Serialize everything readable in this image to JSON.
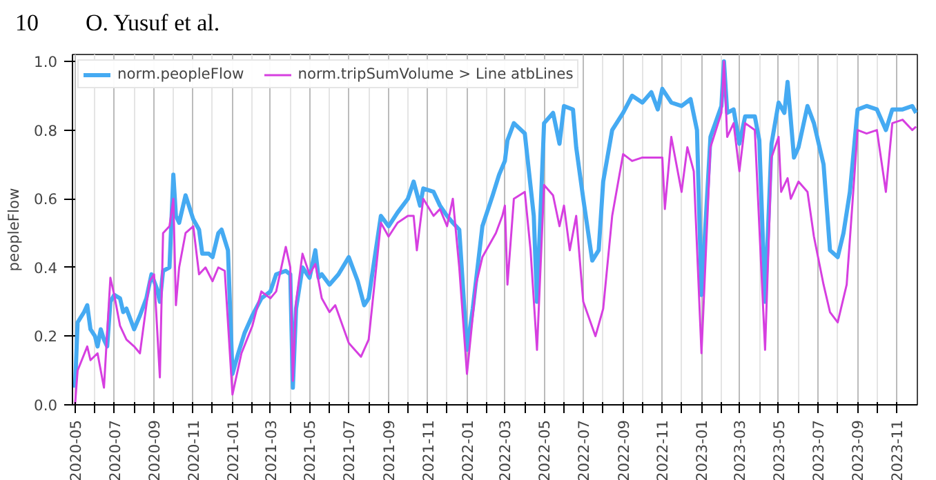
{
  "chart_data": {
    "type": "line",
    "ylabel": "peopleFlow",
    "annotations": [
      "10",
      "O. Yusuf et al."
    ],
    "xlim": [
      "2020-04-27",
      "2023-12-03"
    ],
    "ylim": [
      0,
      1.02
    ],
    "yticks": [
      {
        "value": 0,
        "label": "0.0"
      },
      {
        "value": 0.2,
        "label": "0.2"
      },
      {
        "value": 0.4,
        "label": "0.4"
      },
      {
        "value": 0.6,
        "label": "0.6"
      },
      {
        "value": 0.8,
        "label": "0.8"
      },
      {
        "value": 1,
        "label": "1.0"
      }
    ],
    "xticks": [
      {
        "value": "2020-05",
        "label": "2020-05"
      },
      {
        "value": "2020-06",
        "label": null
      },
      {
        "value": "2020-07",
        "label": "2020-07"
      },
      {
        "value": "2020-08",
        "label": null
      },
      {
        "value": "2020-09",
        "label": "2020-09"
      },
      {
        "value": "2020-10",
        "label": null
      },
      {
        "value": "2020-11",
        "label": "2020-11"
      },
      {
        "value": "2020-12",
        "label": null
      },
      {
        "value": "2021-01",
        "label": "2021-01"
      },
      {
        "value": "2021-02",
        "label": null
      },
      {
        "value": "2021-03",
        "label": "2021-03"
      },
      {
        "value": "2021-04",
        "label": null
      },
      {
        "value": "2021-05",
        "label": "2021-05"
      },
      {
        "value": "2021-06",
        "label": null
      },
      {
        "value": "2021-07",
        "label": "2021-07"
      },
      {
        "value": "2021-08",
        "label": null
      },
      {
        "value": "2021-09",
        "label": "2021-09"
      },
      {
        "value": "2021-10",
        "label": null
      },
      {
        "value": "2021-11",
        "label": "2021-11"
      },
      {
        "value": "2021-12",
        "label": null
      },
      {
        "value": "2022-01",
        "label": "2022-01"
      },
      {
        "value": "2022-02",
        "label": null
      },
      {
        "value": "2022-03",
        "label": "2022-03"
      },
      {
        "value": "2022-04",
        "label": null
      },
      {
        "value": "2022-05",
        "label": "2022-05"
      },
      {
        "value": "2022-06",
        "label": null
      },
      {
        "value": "2022-07",
        "label": "2022-07"
      },
      {
        "value": "2022-08",
        "label": null
      },
      {
        "value": "2022-09",
        "label": "2022-09"
      },
      {
        "value": "2022-10",
        "label": null
      },
      {
        "value": "2022-11",
        "label": "2022-11"
      },
      {
        "value": "2022-12",
        "label": null
      },
      {
        "value": "2023-01",
        "label": "2023-01"
      },
      {
        "value": "2023-02",
        "label": null
      },
      {
        "value": "2023-03",
        "label": "2023-03"
      },
      {
        "value": "2023-04",
        "label": null
      },
      {
        "value": "2023-05",
        "label": "2023-05"
      },
      {
        "value": "2023-06",
        "label": null
      },
      {
        "value": "2023-07",
        "label": "2023-07"
      },
      {
        "value": "2023-08",
        "label": null
      },
      {
        "value": "2023-09",
        "label": "2023-09"
      },
      {
        "value": "2023-10",
        "label": null
      },
      {
        "value": "2023-11",
        "label": "2023-11"
      }
    ],
    "grid": "x",
    "legend": "top left",
    "series": [
      {
        "name": "norm.peopleFlow",
        "color": "#45aaf2",
        "x": [
          "2020-05-01",
          "2020-05-05",
          "2020-05-15",
          "2020-05-20",
          "2020-05-25",
          "2020-06-01",
          "2020-06-05",
          "2020-06-10",
          "2020-06-15",
          "2020-06-20",
          "2020-06-25",
          "2020-07-01",
          "2020-07-10",
          "2020-07-15",
          "2020-07-20",
          "2020-08-01",
          "2020-08-10",
          "2020-08-20",
          "2020-08-28",
          "2020-09-05",
          "2020-09-10",
          "2020-09-15",
          "2020-09-25",
          "2020-10-01",
          "2020-10-05",
          "2020-10-10",
          "2020-10-20",
          "2020-11-01",
          "2020-11-10",
          "2020-11-15",
          "2020-11-25",
          "2020-12-01",
          "2020-12-10",
          "2020-12-15",
          "2020-12-25",
          "2021-01-01",
          "2021-01-10",
          "2021-01-20",
          "2021-02-01",
          "2021-02-15",
          "2021-03-01",
          "2021-03-10",
          "2021-03-25",
          "2021-04-01",
          "2021-04-05",
          "2021-04-10",
          "2021-04-20",
          "2021-05-01",
          "2021-05-10",
          "2021-05-15",
          "2021-05-20",
          "2021-06-01",
          "2021-06-15",
          "2021-07-01",
          "2021-07-15",
          "2021-07-25",
          "2021-08-01",
          "2021-08-20",
          "2021-09-01",
          "2021-09-15",
          "2021-10-01",
          "2021-10-10",
          "2021-10-20",
          "2021-10-25",
          "2021-11-10",
          "2021-11-20",
          "2021-12-01",
          "2021-12-10",
          "2021-12-20",
          "2022-01-01",
          "2022-01-10",
          "2022-01-25",
          "2022-02-10",
          "2022-02-20",
          "2022-03-01",
          "2022-03-05",
          "2022-03-15",
          "2022-04-01",
          "2022-04-15",
          "2022-04-20",
          "2022-05-01",
          "2022-05-15",
          "2022-05-25",
          "2022-06-01",
          "2022-06-15",
          "2022-06-20",
          "2022-07-01",
          "2022-07-15",
          "2022-07-25",
          "2022-08-01",
          "2022-08-15",
          "2022-09-01",
          "2022-09-15",
          "2022-10-01",
          "2022-10-15",
          "2022-10-25",
          "2022-11-01",
          "2022-11-15",
          "2022-12-01",
          "2022-12-15",
          "2022-12-25",
          "2023-01-01",
          "2023-01-15",
          "2023-02-01",
          "2023-02-05",
          "2023-02-10",
          "2023-02-20",
          "2023-03-01",
          "2023-03-10",
          "2023-03-25",
          "2023-04-01",
          "2023-04-10",
          "2023-04-20",
          "2023-05-01",
          "2023-05-10",
          "2023-05-15",
          "2023-05-25",
          "2023-06-01",
          "2023-06-15",
          "2023-06-25",
          "2023-07-10",
          "2023-07-20",
          "2023-08-01",
          "2023-08-10",
          "2023-08-20",
          "2023-09-01",
          "2023-09-15",
          "2023-10-01",
          "2023-10-15",
          "2023-10-25",
          "2023-11-10",
          "2023-11-25",
          "2023-12-01"
        ],
        "values": [
          0.05,
          0.24,
          0.27,
          0.29,
          0.22,
          0.2,
          0.17,
          0.22,
          0.19,
          0.17,
          0.3,
          0.32,
          0.31,
          0.27,
          0.28,
          0.22,
          0.26,
          0.31,
          0.38,
          0.34,
          0.3,
          0.39,
          0.4,
          0.67,
          0.55,
          0.53,
          0.61,
          0.54,
          0.51,
          0.44,
          0.44,
          0.43,
          0.5,
          0.51,
          0.45,
          0.09,
          0.15,
          0.21,
          0.26,
          0.31,
          0.33,
          0.38,
          0.39,
          0.38,
          0.05,
          0.28,
          0.4,
          0.37,
          0.45,
          0.37,
          0.38,
          0.35,
          0.38,
          0.43,
          0.36,
          0.29,
          0.31,
          0.55,
          0.52,
          0.56,
          0.6,
          0.65,
          0.58,
          0.63,
          0.62,
          0.58,
          0.55,
          0.53,
          0.51,
          0.16,
          0.28,
          0.52,
          0.61,
          0.67,
          0.71,
          0.77,
          0.82,
          0.79,
          0.55,
          0.3,
          0.82,
          0.85,
          0.76,
          0.87,
          0.86,
          0.75,
          0.6,
          0.42,
          0.45,
          0.65,
          0.8,
          0.85,
          0.9,
          0.88,
          0.91,
          0.86,
          0.92,
          0.88,
          0.87,
          0.89,
          0.8,
          0.32,
          0.78,
          0.87,
          1.0,
          0.85,
          0.86,
          0.76,
          0.84,
          0.84,
          0.77,
          0.3,
          0.76,
          0.88,
          0.85,
          0.94,
          0.72,
          0.75,
          0.87,
          0.82,
          0.7,
          0.45,
          0.43,
          0.5,
          0.62,
          0.86,
          0.87,
          0.86,
          0.8,
          0.86,
          0.86,
          0.87,
          0.85
        ]
      },
      {
        "name": "norm.tripSumVolume > Line atbLines",
        "color": "#d63fe0",
        "x": [
          "2020-05-01",
          "2020-05-05",
          "2020-05-20",
          "2020-05-25",
          "2020-06-05",
          "2020-06-15",
          "2020-06-25",
          "2020-07-01",
          "2020-07-10",
          "2020-07-20",
          "2020-08-01",
          "2020-08-10",
          "2020-08-25",
          "2020-09-01",
          "2020-09-10",
          "2020-09-15",
          "2020-09-25",
          "2020-10-01",
          "2020-10-05",
          "2020-10-10",
          "2020-10-20",
          "2020-11-01",
          "2020-11-10",
          "2020-11-20",
          "2020-12-01",
          "2020-12-10",
          "2020-12-20",
          "2021-01-01",
          "2021-01-15",
          "2021-02-01",
          "2021-02-15",
          "2021-03-01",
          "2021-03-10",
          "2021-03-25",
          "2021-04-01",
          "2021-04-05",
          "2021-04-10",
          "2021-04-20",
          "2021-05-01",
          "2021-05-10",
          "2021-05-20",
          "2021-06-01",
          "2021-06-10",
          "2021-07-01",
          "2021-07-20",
          "2021-08-01",
          "2021-08-20",
          "2021-09-01",
          "2021-09-15",
          "2021-10-01",
          "2021-10-10",
          "2021-10-15",
          "2021-10-25",
          "2021-11-10",
          "2021-11-20",
          "2021-12-01",
          "2021-12-10",
          "2021-12-20",
          "2022-01-01",
          "2022-01-15",
          "2022-01-25",
          "2022-02-15",
          "2022-02-25",
          "2022-03-01",
          "2022-03-05",
          "2022-03-15",
          "2022-04-01",
          "2022-04-10",
          "2022-04-20",
          "2022-05-01",
          "2022-05-15",
          "2022-05-25",
          "2022-06-01",
          "2022-06-10",
          "2022-06-20",
          "2022-07-01",
          "2022-07-20",
          "2022-08-01",
          "2022-08-15",
          "2022-09-01",
          "2022-09-15",
          "2022-10-01",
          "2022-10-15",
          "2022-11-01",
          "2022-11-05",
          "2022-11-15",
          "2022-12-01",
          "2022-12-10",
          "2022-12-20",
          "2023-01-01",
          "2023-01-15",
          "2023-02-01",
          "2023-02-05",
          "2023-02-10",
          "2023-02-20",
          "2023-03-01",
          "2023-03-10",
          "2023-03-25",
          "2023-04-10",
          "2023-04-20",
          "2023-05-01",
          "2023-05-05",
          "2023-05-15",
          "2023-05-20",
          "2023-06-01",
          "2023-06-15",
          "2023-06-25",
          "2023-07-10",
          "2023-07-20",
          "2023-08-01",
          "2023-08-15",
          "2023-09-01",
          "2023-09-15",
          "2023-10-01",
          "2023-10-15",
          "2023-10-25",
          "2023-11-10",
          "2023-11-25",
          "2023-12-01"
        ],
        "values": [
          0.0,
          0.1,
          0.17,
          0.13,
          0.15,
          0.05,
          0.37,
          0.32,
          0.23,
          0.19,
          0.17,
          0.15,
          0.36,
          0.38,
          0.08,
          0.5,
          0.52,
          0.6,
          0.29,
          0.4,
          0.5,
          0.52,
          0.38,
          0.4,
          0.36,
          0.4,
          0.39,
          0.03,
          0.15,
          0.23,
          0.33,
          0.31,
          0.33,
          0.46,
          0.4,
          0.07,
          0.3,
          0.44,
          0.38,
          0.41,
          0.31,
          0.27,
          0.29,
          0.18,
          0.14,
          0.19,
          0.53,
          0.49,
          0.53,
          0.55,
          0.55,
          0.45,
          0.6,
          0.55,
          0.57,
          0.52,
          0.6,
          0.4,
          0.09,
          0.35,
          0.43,
          0.5,
          0.55,
          0.58,
          0.35,
          0.6,
          0.62,
          0.45,
          0.16,
          0.64,
          0.61,
          0.52,
          0.58,
          0.45,
          0.55,
          0.3,
          0.2,
          0.28,
          0.55,
          0.73,
          0.71,
          0.72,
          0.72,
          0.72,
          0.57,
          0.78,
          0.62,
          0.75,
          0.68,
          0.15,
          0.75,
          0.85,
          1.0,
          0.78,
          0.82,
          0.68,
          0.82,
          0.8,
          0.16,
          0.72,
          0.78,
          0.62,
          0.66,
          0.6,
          0.65,
          0.62,
          0.49,
          0.35,
          0.27,
          0.24,
          0.35,
          0.8,
          0.79,
          0.8,
          0.62,
          0.82,
          0.83,
          0.8,
          0.81
        ]
      }
    ]
  }
}
